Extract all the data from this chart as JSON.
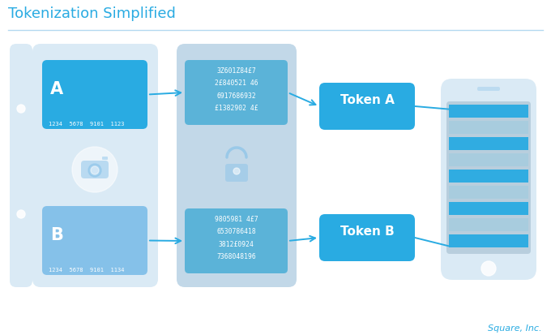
{
  "title": "Tokenization Simplified",
  "credit": "Square, Inc.",
  "bg_color": "#ffffff",
  "title_color": "#29abe2",
  "credit_color": "#29abe2",
  "line_color": "#b3d9f0",
  "arrow_color": "#29abe2",
  "light_blue": "#daeaf5",
  "mid_blue": "#85c1e9",
  "dark_blue": "#29abe2",
  "card_a_color": "#29abe2",
  "card_b_color": "#85c1e9",
  "token_color": "#29abe2",
  "enc_bg": "#c2d8e8",
  "enc_text_bg": "#5bb3d8",
  "phone_screen_bg": "#b8cedd",
  "card_a_text": "A",
  "card_a_num": "1234  5678  9101  1123",
  "card_b_text": "B",
  "card_b_num": "1234  5678  9101  1134",
  "token_a_label": "Token A",
  "token_b_label": "Token B",
  "encrypt_a_text": "3Z601Z84£7\n2£840521 46\n6917686932\n£1382902 4£",
  "encrypt_b_text": "9805981 4£7\n6530786418\n3812£0924\n7368048196"
}
